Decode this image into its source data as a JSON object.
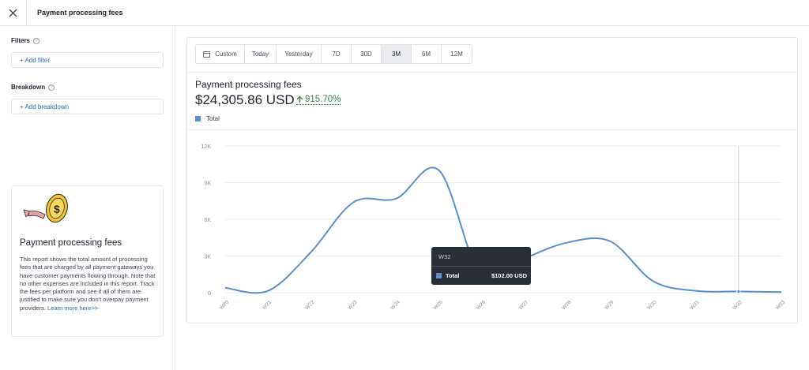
{
  "header": {
    "title": "Payment processing fees"
  },
  "sidebar": {
    "filters_label": "Filters",
    "add_filter": "+ Add filter",
    "breakdown_label": "Breakdown",
    "add_breakdown": "+ Add breakdown",
    "info": {
      "title": "Payment processing fees",
      "text": "This report shows the total amount of processing fees that are charged by all payment gateways you have customer payments flowing through. Note that no other expenses are included in this report. Track the fees per platform and see if all of them are justified to make sure you don't overpay payment providers.",
      "link": "Learn more here>>"
    }
  },
  "range": {
    "options": [
      "Custom",
      "Today",
      "Yesterday",
      "7D",
      "30D",
      "3M",
      "6M",
      "12M"
    ],
    "active": "3M"
  },
  "metric": {
    "title": "Payment processing fees",
    "value": "$24,305.86 USD",
    "change": "915.70%"
  },
  "colors": {
    "series": "#5b8fcf",
    "positive": "#2e8540",
    "tooltip_bg": "#2a2e37"
  },
  "chart_data": {
    "type": "line",
    "x": [
      "W20",
      "W21",
      "W22",
      "W23",
      "W24",
      "W25",
      "W26",
      "W27",
      "W28",
      "W29",
      "W30",
      "W31",
      "W32",
      "W33"
    ],
    "series": [
      {
        "name": "Total",
        "values": [
          400,
          150,
          3300,
          7400,
          7700,
          10000,
          1200,
          2800,
          4100,
          4200,
          950,
          150,
          102,
          50
        ]
      }
    ],
    "ylim": [
      0,
      12000
    ],
    "yticks": [
      0,
      3000,
      6000,
      9000,
      12000
    ],
    "ytick_labels": [
      "0",
      "3K",
      "6K",
      "9K",
      "12K"
    ],
    "grid": true,
    "legend": "top-left",
    "hover_index": 12
  },
  "tooltip": {
    "label": "W32",
    "series": "Total",
    "value": "$102.00 USD"
  }
}
